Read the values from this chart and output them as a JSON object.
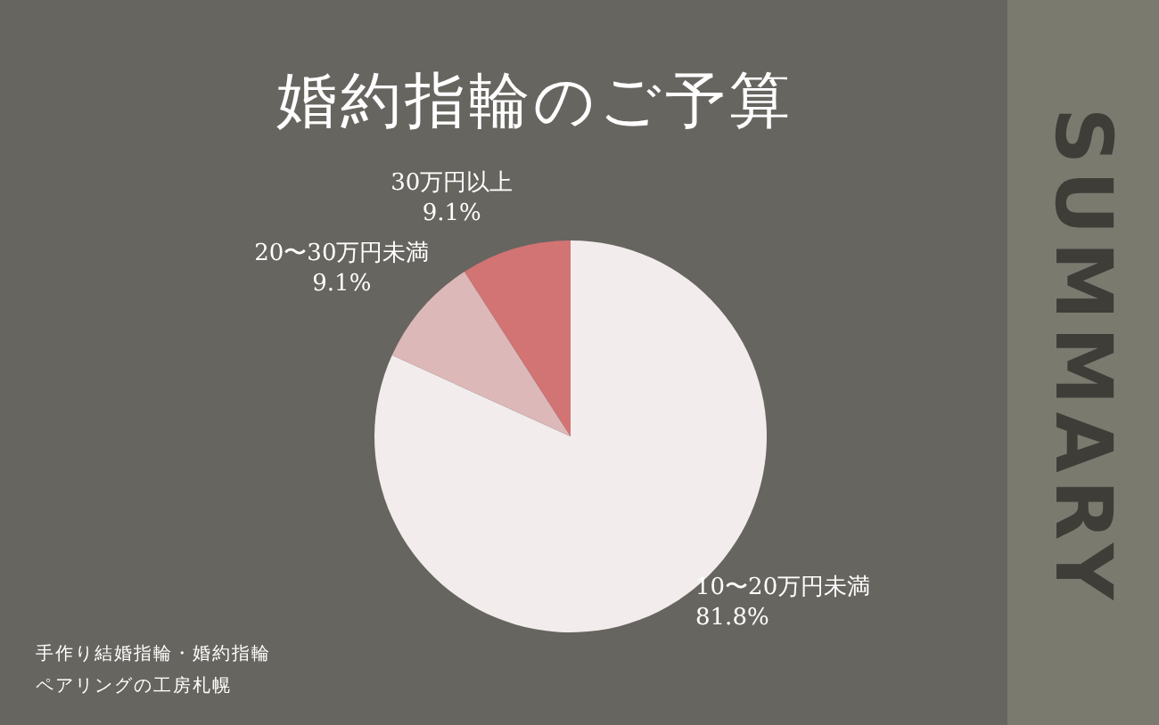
{
  "chart_data": {
    "type": "pie",
    "title": "婚約指輪のご予算",
    "categories": [
      "10〜20万円未満",
      "20〜30万円未満",
      "30万円以上"
    ],
    "values": [
      81.8,
      9.1,
      9.1
    ],
    "value_labels": [
      "81.8%",
      "9.1%",
      "9.1%"
    ],
    "colors": [
      "#f2ecec",
      "#dcb8b9",
      "#d27474"
    ],
    "annotations": [
      "SUMMARY",
      "手作り結婚指輪・婚約指輪",
      "ペアリングの工房札幌"
    ]
  }
}
